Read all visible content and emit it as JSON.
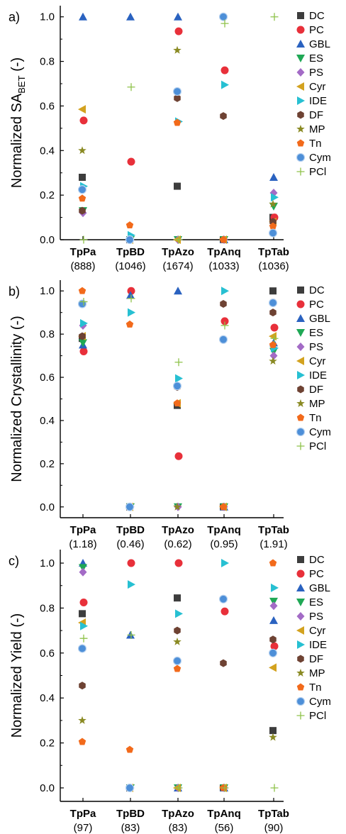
{
  "legend_series": [
    "DC",
    "PC",
    "GBL",
    "ES",
    "PS",
    "Cyr",
    "IDE",
    "DF",
    "MP",
    "Tn",
    "Cym",
    "PCl"
  ],
  "series_style": {
    "DC": {
      "marker": "square",
      "color": "#3d3d3d"
    },
    "PC": {
      "marker": "circle",
      "color": "#e8303a"
    },
    "GBL": {
      "marker": "triangle-up",
      "color": "#2a62c0"
    },
    "ES": {
      "marker": "triangle-down",
      "color": "#1fa855"
    },
    "PS": {
      "marker": "diamond",
      "color": "#a36bc6"
    },
    "Cyr": {
      "marker": "triangle-left",
      "color": "#d3a21f"
    },
    "IDE": {
      "marker": "triangle-right",
      "color": "#27c0d2"
    },
    "DF": {
      "marker": "hexagon",
      "color": "#6e4233"
    },
    "MP": {
      "marker": "star",
      "color": "#8a8a23"
    },
    "Tn": {
      "marker": "pentagon",
      "color": "#f26a1b"
    },
    "Cym": {
      "marker": "sphere",
      "color": "#4d8fd8"
    },
    "PCl": {
      "marker": "plus",
      "color": "#8fc24a"
    }
  },
  "chart_data": [
    {
      "type": "scatter",
      "panel_label": "a)",
      "ylabel_main": "Normalized SA",
      "ylabel_sub": "BET",
      "ylabel_tail": " (-)",
      "ylim": [
        0,
        1.05
      ],
      "yticks": [
        "0.0",
        "0.2",
        "0.4",
        "0.6",
        "0.8",
        "1.0"
      ],
      "categories": [
        "TpPa",
        "TpBD",
        "TpAzo",
        "TpAnq",
        "TpTab"
      ],
      "category_values": [
        "(888)",
        "(1046)",
        "(1674)",
        "(1033)",
        "(1036)"
      ],
      "series": [
        {
          "name": "DC",
          "values": [
            0.28,
            0.0,
            0.24,
            0.0,
            0.1
          ]
        },
        {
          "name": "PC",
          "values": [
            0.535,
            0.35,
            0.935,
            0.76,
            0.1
          ]
        },
        {
          "name": "GBL",
          "values": [
            1.0,
            1.0,
            1.0,
            0.0,
            0.28
          ]
        },
        {
          "name": "ES",
          "values": [
            0.13,
            0.0,
            0.0,
            0.0,
            0.15
          ]
        },
        {
          "name": "PS",
          "values": [
            0.12,
            0.0,
            0.0,
            0.0,
            0.21
          ]
        },
        {
          "name": "Cyr",
          "values": [
            0.585,
            0.0,
            0.0,
            0.0,
            0.08
          ]
        },
        {
          "name": "IDE",
          "values": [
            0.24,
            0.02,
            0.53,
            0.695,
            0.19
          ]
        },
        {
          "name": "DF",
          "values": [
            0.13,
            0.0,
            0.635,
            0.555,
            0.08
          ]
        },
        {
          "name": "MP",
          "values": [
            0.4,
            0.0,
            0.85,
            0.0,
            0.16
          ]
        },
        {
          "name": "Tn",
          "values": [
            0.185,
            0.065,
            0.525,
            0.0,
            0.06
          ]
        },
        {
          "name": "Cym",
          "values": [
            0.225,
            0.0,
            0.665,
            1.0,
            0.03
          ]
        },
        {
          "name": "PCl",
          "values": [
            0.0,
            0.685,
            0.0,
            0.97,
            1.0
          ]
        }
      ]
    },
    {
      "type": "scatter",
      "panel_label": "b)",
      "ylabel_main": "Normalized Crystallinity (-)",
      "ylabel_sub": "",
      "ylabel_tail": "",
      "ylim": [
        -0.05,
        1.05
      ],
      "yticks": [
        "0.0",
        "0.2",
        "0.4",
        "0.6",
        "0.8",
        "1.0"
      ],
      "categories": [
        "TpPa",
        "TpBD",
        "TpAzo",
        "TpAnq",
        "TpTab"
      ],
      "category_values": [
        "(1.18)",
        "(0.46)",
        "(0.62)",
        "(0.95)",
        "(1.91)"
      ],
      "series": [
        {
          "name": "DC",
          "values": [
            0.78,
            0.0,
            0.47,
            0.0,
            1.0
          ]
        },
        {
          "name": "PC",
          "values": [
            0.72,
            1.0,
            0.235,
            0.86,
            0.83
          ]
        },
        {
          "name": "GBL",
          "values": [
            0.75,
            0.98,
            1.0,
            0.0,
            0.76
          ]
        },
        {
          "name": "ES",
          "values": [
            0.76,
            0.0,
            0.0,
            0.0,
            0.72
          ]
        },
        {
          "name": "PS",
          "values": [
            0.84,
            0.0,
            0.0,
            0.0,
            0.7
          ]
        },
        {
          "name": "Cyr",
          "values": [
            0.79,
            0.0,
            0.48,
            0.0,
            0.79
          ]
        },
        {
          "name": "IDE",
          "values": [
            0.85,
            0.9,
            0.595,
            1.0,
            0.735
          ]
        },
        {
          "name": "DF",
          "values": [
            0.79,
            0.0,
            0.555,
            0.94,
            0.9
          ]
        },
        {
          "name": "MP",
          "values": [
            0.94,
            0.0,
            0.0,
            0.0,
            0.675
          ]
        },
        {
          "name": "Tn",
          "values": [
            1.0,
            0.845,
            0.48,
            0.0,
            0.75
          ]
        },
        {
          "name": "Cym",
          "values": [
            0.94,
            0.0,
            0.56,
            0.775,
            0.945
          ]
        },
        {
          "name": "PCl",
          "values": [
            0.95,
            0.965,
            0.67,
            0.84,
            0.78
          ]
        }
      ]
    },
    {
      "type": "scatter",
      "panel_label": "c)",
      "ylabel_main": "Normalized Yield (-)",
      "ylabel_sub": "",
      "ylabel_tail": "",
      "ylim": [
        -0.06,
        1.06
      ],
      "yticks": [
        "0.0",
        "0.2",
        "0.4",
        "0.6",
        "0.8",
        "1.0"
      ],
      "categories": [
        "TpPa",
        "TpBD",
        "TpAzo",
        "TpAnq",
        "TpTab"
      ],
      "category_values": [
        "(97)",
        "(83)",
        "(83)",
        "(56)",
        "(90)"
      ],
      "series": [
        {
          "name": "DC",
          "values": [
            0.775,
            0.0,
            0.845,
            0.0,
            0.255
          ]
        },
        {
          "name": "PC",
          "values": [
            0.825,
            1.0,
            1.0,
            0.785,
            0.63
          ]
        },
        {
          "name": "GBL",
          "values": [
            1.0,
            0.68,
            0.0,
            0.0,
            0.745
          ]
        },
        {
          "name": "ES",
          "values": [
            0.98,
            0.0,
            0.0,
            0.0,
            0.83
          ]
        },
        {
          "name": "PS",
          "values": [
            0.96,
            0.0,
            0.0,
            0.0,
            0.81
          ]
        },
        {
          "name": "Cyr",
          "values": [
            0.735,
            0.0,
            0.0,
            0.0,
            0.535
          ]
        },
        {
          "name": "IDE",
          "values": [
            0.72,
            0.905,
            0.775,
            1.0,
            0.89
          ]
        },
        {
          "name": "DF",
          "values": [
            0.455,
            0.0,
            0.7,
            0.555,
            0.66
          ]
        },
        {
          "name": "MP",
          "values": [
            0.3,
            0.0,
            0.65,
            0.0,
            0.225
          ]
        },
        {
          "name": "Tn",
          "values": [
            0.205,
            0.17,
            0.53,
            0.0,
            1.0
          ]
        },
        {
          "name": "Cym",
          "values": [
            0.62,
            0.0,
            0.565,
            0.84,
            0.6
          ]
        },
        {
          "name": "PCl",
          "values": [
            0.665,
            0.68,
            0.0,
            0.0,
            0.0
          ]
        }
      ]
    }
  ]
}
